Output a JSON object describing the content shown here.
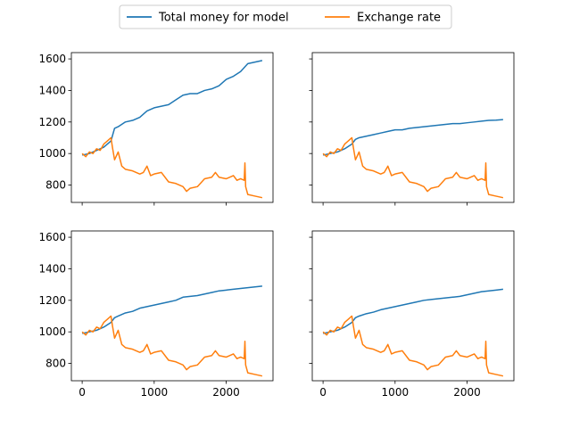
{
  "legend": {
    "placement": "top-center",
    "entries": [
      {
        "label": "Total money for model",
        "color": "#1f77b4"
      },
      {
        "label": "Exchange rate",
        "color": "#ff7f0e"
      }
    ]
  },
  "chart_data": [
    {
      "type": "line",
      "position": "top-left",
      "xlim": [
        -150,
        2650
      ],
      "ylim": [
        690,
        1640
      ],
      "xticks": [
        0,
        1000,
        2000
      ],
      "yticks": [
        800,
        1000,
        1200,
        1400,
        1600
      ],
      "xtick_labels_shown": false,
      "ytick_labels_shown": true,
      "series": [
        {
          "legend_index": 0,
          "color": "#1f77b4",
          "x": [
            0,
            100,
            200,
            300,
            400,
            450,
            500,
            600,
            700,
            800,
            900,
            1000,
            1100,
            1200,
            1300,
            1400,
            1500,
            1600,
            1700,
            1800,
            1900,
            2000,
            2100,
            2200,
            2300,
            2400,
            2500
          ],
          "y": [
            990,
            1000,
            1020,
            1040,
            1080,
            1160,
            1170,
            1200,
            1210,
            1230,
            1270,
            1290,
            1300,
            1310,
            1340,
            1370,
            1380,
            1380,
            1400,
            1410,
            1430,
            1470,
            1490,
            1520,
            1570,
            1580,
            1590
          ]
        },
        {
          "legend_index": 1,
          "color": "#ff7f0e",
          "x": [
            0,
            50,
            100,
            150,
            200,
            250,
            300,
            350,
            400,
            420,
            450,
            500,
            550,
            600,
            700,
            800,
            850,
            900,
            950,
            1000,
            1100,
            1200,
            1300,
            1400,
            1450,
            1500,
            1600,
            1700,
            1800,
            1850,
            1900,
            2000,
            2100,
            2150,
            2200,
            2250,
            2260,
            2270,
            2300,
            2400,
            2500
          ],
          "y": [
            1000,
            980,
            1010,
            1000,
            1030,
            1020,
            1060,
            1080,
            1100,
            1040,
            960,
            1010,
            920,
            900,
            890,
            870,
            880,
            920,
            860,
            870,
            880,
            820,
            810,
            790,
            760,
            780,
            790,
            840,
            850,
            880,
            850,
            840,
            860,
            830,
            840,
            830,
            940,
            790,
            740,
            730,
            720
          ]
        }
      ]
    },
    {
      "type": "line",
      "position": "top-right",
      "xlim": [
        -150,
        2650
      ],
      "ylim": [
        690,
        1640
      ],
      "xticks": [
        0,
        1000,
        2000
      ],
      "yticks": [
        800,
        1000,
        1200,
        1400,
        1600
      ],
      "xtick_labels_shown": false,
      "ytick_labels_shown": false,
      "series": [
        {
          "legend_index": 0,
          "color": "#1f77b4",
          "x": [
            0,
            100,
            200,
            300,
            400,
            450,
            500,
            600,
            700,
            800,
            900,
            1000,
            1100,
            1200,
            1300,
            1400,
            1500,
            1600,
            1700,
            1800,
            1900,
            2000,
            2100,
            2200,
            2300,
            2400,
            2500
          ],
          "y": [
            990,
            1000,
            1010,
            1030,
            1060,
            1090,
            1100,
            1110,
            1120,
            1130,
            1140,
            1150,
            1150,
            1160,
            1165,
            1170,
            1175,
            1180,
            1185,
            1190,
            1190,
            1195,
            1200,
            1205,
            1210,
            1212,
            1215
          ]
        },
        {
          "legend_index": 1,
          "color": "#ff7f0e",
          "x": [
            0,
            50,
            100,
            150,
            200,
            250,
            300,
            350,
            400,
            420,
            450,
            500,
            550,
            600,
            700,
            800,
            850,
            900,
            950,
            1000,
            1100,
            1200,
            1300,
            1400,
            1450,
            1500,
            1600,
            1700,
            1800,
            1850,
            1900,
            2000,
            2100,
            2150,
            2200,
            2250,
            2260,
            2270,
            2300,
            2400,
            2500
          ],
          "y": [
            1000,
            980,
            1010,
            1000,
            1030,
            1020,
            1060,
            1080,
            1100,
            1040,
            960,
            1010,
            920,
            900,
            890,
            870,
            880,
            920,
            860,
            870,
            880,
            820,
            810,
            790,
            760,
            780,
            790,
            840,
            850,
            880,
            850,
            840,
            860,
            830,
            840,
            830,
            940,
            790,
            740,
            730,
            720
          ]
        }
      ]
    },
    {
      "type": "line",
      "position": "bottom-left",
      "xlim": [
        -150,
        2650
      ],
      "ylim": [
        690,
        1640
      ],
      "xticks": [
        0,
        1000,
        2000
      ],
      "yticks": [
        800,
        1000,
        1200,
        1400,
        1600
      ],
      "xtick_labels_shown": true,
      "ytick_labels_shown": true,
      "series": [
        {
          "legend_index": 0,
          "color": "#1f77b4",
          "x": [
            0,
            100,
            200,
            300,
            400,
            450,
            500,
            600,
            700,
            800,
            900,
            1000,
            1100,
            1200,
            1300,
            1400,
            1500,
            1600,
            1700,
            1800,
            1900,
            2000,
            2100,
            2200,
            2300,
            2400,
            2500
          ],
          "y": [
            990,
            1000,
            1010,
            1030,
            1060,
            1090,
            1100,
            1120,
            1130,
            1150,
            1160,
            1170,
            1180,
            1190,
            1200,
            1220,
            1225,
            1230,
            1240,
            1250,
            1260,
            1265,
            1270,
            1275,
            1280,
            1285,
            1290
          ]
        },
        {
          "legend_index": 1,
          "color": "#ff7f0e",
          "x": [
            0,
            50,
            100,
            150,
            200,
            250,
            300,
            350,
            400,
            420,
            450,
            500,
            550,
            600,
            700,
            800,
            850,
            900,
            950,
            1000,
            1100,
            1200,
            1300,
            1400,
            1450,
            1500,
            1600,
            1700,
            1800,
            1850,
            1900,
            2000,
            2100,
            2150,
            2200,
            2250,
            2260,
            2270,
            2300,
            2400,
            2500
          ],
          "y": [
            1000,
            980,
            1010,
            1000,
            1030,
            1020,
            1060,
            1080,
            1100,
            1040,
            960,
            1010,
            920,
            900,
            890,
            870,
            880,
            920,
            860,
            870,
            880,
            820,
            810,
            790,
            760,
            780,
            790,
            840,
            850,
            880,
            850,
            840,
            860,
            830,
            840,
            830,
            940,
            790,
            740,
            730,
            720
          ]
        }
      ]
    },
    {
      "type": "line",
      "position": "bottom-right",
      "xlim": [
        -150,
        2650
      ],
      "ylim": [
        690,
        1640
      ],
      "xticks": [
        0,
        1000,
        2000
      ],
      "yticks": [
        800,
        1000,
        1200,
        1400,
        1600
      ],
      "xtick_labels_shown": true,
      "ytick_labels_shown": false,
      "series": [
        {
          "legend_index": 0,
          "color": "#1f77b4",
          "x": [
            0,
            100,
            200,
            300,
            400,
            450,
            500,
            600,
            700,
            800,
            900,
            1000,
            1100,
            1200,
            1300,
            1400,
            1500,
            1600,
            1700,
            1800,
            1900,
            2000,
            2100,
            2200,
            2300,
            2400,
            2500
          ],
          "y": [
            990,
            1000,
            1010,
            1030,
            1060,
            1090,
            1100,
            1115,
            1125,
            1140,
            1150,
            1160,
            1170,
            1180,
            1190,
            1200,
            1205,
            1210,
            1215,
            1220,
            1225,
            1235,
            1245,
            1255,
            1260,
            1265,
            1270
          ]
        },
        {
          "legend_index": 1,
          "color": "#ff7f0e",
          "x": [
            0,
            50,
            100,
            150,
            200,
            250,
            300,
            350,
            400,
            420,
            450,
            500,
            550,
            600,
            700,
            800,
            850,
            900,
            950,
            1000,
            1100,
            1200,
            1300,
            1400,
            1450,
            1500,
            1600,
            1700,
            1800,
            1850,
            1900,
            2000,
            2100,
            2150,
            2200,
            2250,
            2260,
            2270,
            2300,
            2400,
            2500
          ],
          "y": [
            1000,
            980,
            1010,
            1000,
            1030,
            1020,
            1060,
            1080,
            1100,
            1040,
            960,
            1010,
            920,
            900,
            890,
            870,
            880,
            920,
            860,
            870,
            880,
            820,
            810,
            790,
            760,
            780,
            790,
            840,
            850,
            880,
            850,
            840,
            860,
            830,
            840,
            830,
            940,
            790,
            740,
            730,
            720
          ]
        }
      ]
    }
  ]
}
